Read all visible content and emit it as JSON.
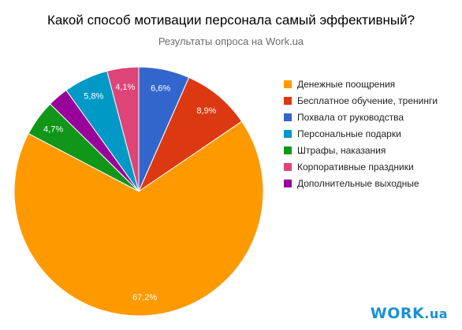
{
  "chart_data": {
    "type": "pie",
    "title": "Какой способ мотивации персонала самый эффективный?",
    "subtitle": "Результаты опроса на Work.ua",
    "legend_position": "right",
    "slices": [
      {
        "label": "Денежные поощрения",
        "value": 67.2,
        "value_label": "67,2%",
        "color": "#ff9900"
      },
      {
        "label": "Бесплатное обучение, тренинги",
        "value": 8.9,
        "value_label": "8,9%",
        "color": "#dc3912"
      },
      {
        "label": "Похвала от руководства",
        "value": 6.6,
        "value_label": "6,6%",
        "color": "#3366cc"
      },
      {
        "label": "Персональные подарки",
        "value": 5.8,
        "value_label": "5,8%",
        "color": "#0099c6"
      },
      {
        "label": "Штрафы, наказания",
        "value": 4.7,
        "value_label": "4,7%",
        "color": "#109618"
      },
      {
        "label": "Корпоративные праздники",
        "value": 4.1,
        "value_label": "4,1%",
        "color": "#dd4477"
      },
      {
        "label": "Дополнительные выходные",
        "value": 2.7,
        "value_label": "",
        "color": "#990099"
      }
    ],
    "slice_order_clockwise_from_top": [
      2,
      1,
      0,
      4,
      6,
      3,
      5
    ]
  },
  "logo": {
    "main": "WORK",
    "domain": ".ua"
  }
}
